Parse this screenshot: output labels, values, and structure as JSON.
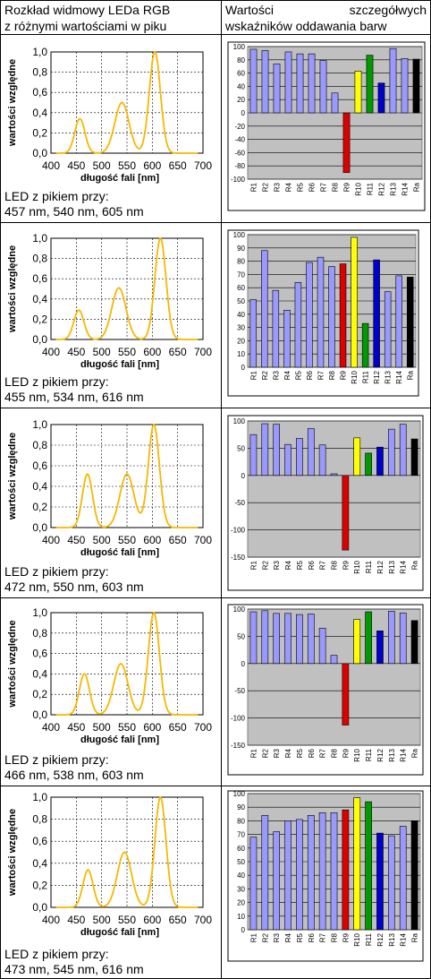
{
  "headers": {
    "left": [
      "Rozkład widmowy LEDa RGB",
      "z różnymi wartościami w piku"
    ],
    "right_line1_a": "Wartości",
    "right_line1_b": "szczegółwych",
    "right_line2": "wskaźników oddawania barw"
  },
  "colors": {
    "spectrum": "#f5b800",
    "bar_default": "#9999ff",
    "R9": "#dd0000",
    "R10": "#ffff00",
    "R11": "#009900",
    "R12": "#0000cc",
    "Ra": "#000000",
    "plot_bg": "#c0c0c0"
  },
  "rows": [
    {
      "caption": [
        "LED z pikiem przy:",
        "457 nm, 540 nm, 605 nm"
      ],
      "peaks": [
        457,
        540,
        605
      ]
    },
    {
      "caption": [
        "LED z pikiem przy:",
        "455 nm, 534 nm, 616 nm"
      ],
      "peaks": [
        455,
        534,
        616
      ]
    },
    {
      "caption": [
        "LED z pikiem przy:",
        "472 nm, 550 nm, 603 nm"
      ],
      "peaks": [
        472,
        550,
        603
      ]
    },
    {
      "caption": [
        "LED z pikiem przy:",
        "466 nm, 538 nm, 603 nm"
      ],
      "peaks": [
        466,
        538,
        603
      ]
    },
    {
      "caption": [
        "LED z pikiem przy:",
        "473 nm, 545 nm, 616 nm"
      ],
      "peaks": [
        473,
        545,
        616
      ]
    }
  ],
  "chart_data": [
    {
      "type": "line",
      "series": [
        {
          "peaks_nm": [
            457,
            540,
            605
          ],
          "heights": [
            0.34,
            0.5,
            1.0
          ],
          "widths_nm": [
            10,
            14,
            11
          ]
        }
      ],
      "xlabel": "długość fali [nm]",
      "ylabel": "wartości względne",
      "xlim": [
        400,
        700
      ],
      "ylim": [
        0,
        1.0
      ],
      "xticks": [
        "400",
        "450",
        "500",
        "550",
        "600",
        "650",
        "700"
      ],
      "yticks": [
        "0,0",
        "0,2",
        "0,4",
        "0,6",
        "0,8",
        "1,0"
      ]
    },
    {
      "type": "bar",
      "categories": [
        "R1",
        "R2",
        "R3",
        "R4",
        "R5",
        "R6",
        "R7",
        "R8",
        "R9",
        "R10",
        "R11",
        "R12",
        "R13",
        "R14",
        "Ra"
      ],
      "values": [
        96,
        94,
        74,
        92,
        89,
        89,
        79,
        30,
        -90,
        63,
        87,
        45,
        97,
        82,
        81
      ],
      "ylim": [
        -100,
        100
      ],
      "yticks": [
        "100",
        "80",
        "60",
        "40",
        "20",
        "0",
        "-20",
        "-40",
        "-60",
        "-80",
        "-100"
      ]
    },
    {
      "type": "line",
      "series": [
        {
          "peaks_nm": [
            455,
            534,
            616
          ],
          "heights": [
            0.29,
            0.51,
            1.0
          ],
          "widths_nm": [
            10,
            14,
            11
          ]
        }
      ],
      "xlabel": "długość fali [nm]",
      "ylabel": "wartości względne",
      "xlim": [
        400,
        700
      ],
      "ylim": [
        0,
        1.0
      ],
      "xticks": [
        "400",
        "450",
        "500",
        "550",
        "600",
        "650",
        "700"
      ],
      "yticks": [
        "0,0",
        "0,2",
        "0,4",
        "0,6",
        "0,8",
        "1,0"
      ]
    },
    {
      "type": "bar",
      "categories": [
        "R1",
        "R2",
        "R3",
        "R4",
        "R5",
        "R6",
        "R7",
        "R8",
        "R9",
        "R10",
        "R11",
        "R12",
        "R13",
        "R14",
        "Ra"
      ],
      "values": [
        51,
        88,
        58,
        43,
        64,
        79,
        83,
        76,
        78,
        98,
        33,
        81,
        57,
        69,
        68
      ],
      "ylim": [
        0,
        100
      ],
      "yticks": [
        "100",
        "90",
        "80",
        "70",
        "60",
        "50",
        "40",
        "30",
        "20",
        "10",
        "0"
      ]
    },
    {
      "type": "line",
      "series": [
        {
          "peaks_nm": [
            472,
            550,
            603
          ],
          "heights": [
            0.52,
            0.52,
            1.0
          ],
          "widths_nm": [
            10,
            14,
            11
          ]
        }
      ],
      "xlabel": "długość fali [nm]",
      "ylabel": "wartości względne",
      "xlim": [
        400,
        700
      ],
      "ylim": [
        0,
        1.0
      ],
      "xticks": [
        "400",
        "450",
        "500",
        "550",
        "600",
        "650",
        "700"
      ],
      "yticks": [
        "0,0",
        "0,2",
        "0,4",
        "0,6",
        "0,8",
        "1,0"
      ]
    },
    {
      "type": "bar",
      "categories": [
        "R1",
        "R2",
        "R3",
        "R4",
        "R5",
        "R6",
        "R7",
        "R8",
        "R9",
        "R10",
        "R11",
        "R12",
        "R13",
        "R14",
        "Ra"
      ],
      "values": [
        75,
        95,
        94,
        57,
        68,
        86,
        56,
        3,
        -137,
        69,
        41,
        52,
        85,
        94,
        67
      ],
      "ylim": [
        -150,
        100
      ],
      "yticks": [
        "100",
        "50",
        "0",
        "-50",
        "-100",
        "-150"
      ]
    },
    {
      "type": "line",
      "series": [
        {
          "peaks_nm": [
            466,
            538,
            603
          ],
          "heights": [
            0.4,
            0.5,
            1.0
          ],
          "widths_nm": [
            10,
            14,
            11
          ]
        }
      ],
      "xlabel": "długość fali [nm]",
      "ylabel": "wartości względne",
      "xlim": [
        400,
        700
      ],
      "ylim": [
        0,
        1.0
      ],
      "xticks": [
        "400",
        "450",
        "500",
        "550",
        "600",
        "650",
        "700"
      ],
      "yticks": [
        "0,0",
        "0,2",
        "0,4",
        "0,6",
        "0,8",
        "1,0"
      ]
    },
    {
      "type": "bar",
      "categories": [
        "R1",
        "R2",
        "R3",
        "R4",
        "R5",
        "R6",
        "R7",
        "R8",
        "R9",
        "R10",
        "R11",
        "R12",
        "R13",
        "R14",
        "Ra"
      ],
      "values": [
        95,
        97,
        92,
        92,
        90,
        91,
        65,
        15,
        -113,
        81,
        95,
        60,
        96,
        93,
        79
      ],
      "ylim": [
        -150,
        100
      ],
      "yticks": [
        "100",
        "50",
        "0",
        "-50",
        "-100",
        "-150"
      ]
    },
    {
      "type": "line",
      "series": [
        {
          "peaks_nm": [
            473,
            545,
            616
          ],
          "heights": [
            0.34,
            0.5,
            1.0
          ],
          "widths_nm": [
            10,
            14,
            11
          ]
        }
      ],
      "xlabel": "długość fali [nm]",
      "ylabel": "wartości względne",
      "xlim": [
        400,
        700
      ],
      "ylim": [
        0,
        1.0
      ],
      "xticks": [
        "400",
        "450",
        "500",
        "550",
        "600",
        "650",
        "700"
      ],
      "yticks": [
        "0,0",
        "0,2",
        "0,4",
        "0,6",
        "0,8",
        "1,0"
      ]
    },
    {
      "type": "bar",
      "categories": [
        "R1",
        "R2",
        "R3",
        "R4",
        "R5",
        "R6",
        "R7",
        "R8",
        "R9",
        "R10",
        "R11",
        "R12",
        "R13",
        "R14",
        "Ra"
      ],
      "values": [
        68,
        84,
        72,
        80,
        81,
        84,
        86,
        86,
        88,
        97,
        94,
        71,
        69,
        76,
        80
      ],
      "ylim": [
        0,
        100
      ],
      "yticks": [
        "100",
        "90",
        "80",
        "70",
        "60",
        "50",
        "40",
        "30",
        "20",
        "10",
        "0"
      ]
    }
  ]
}
